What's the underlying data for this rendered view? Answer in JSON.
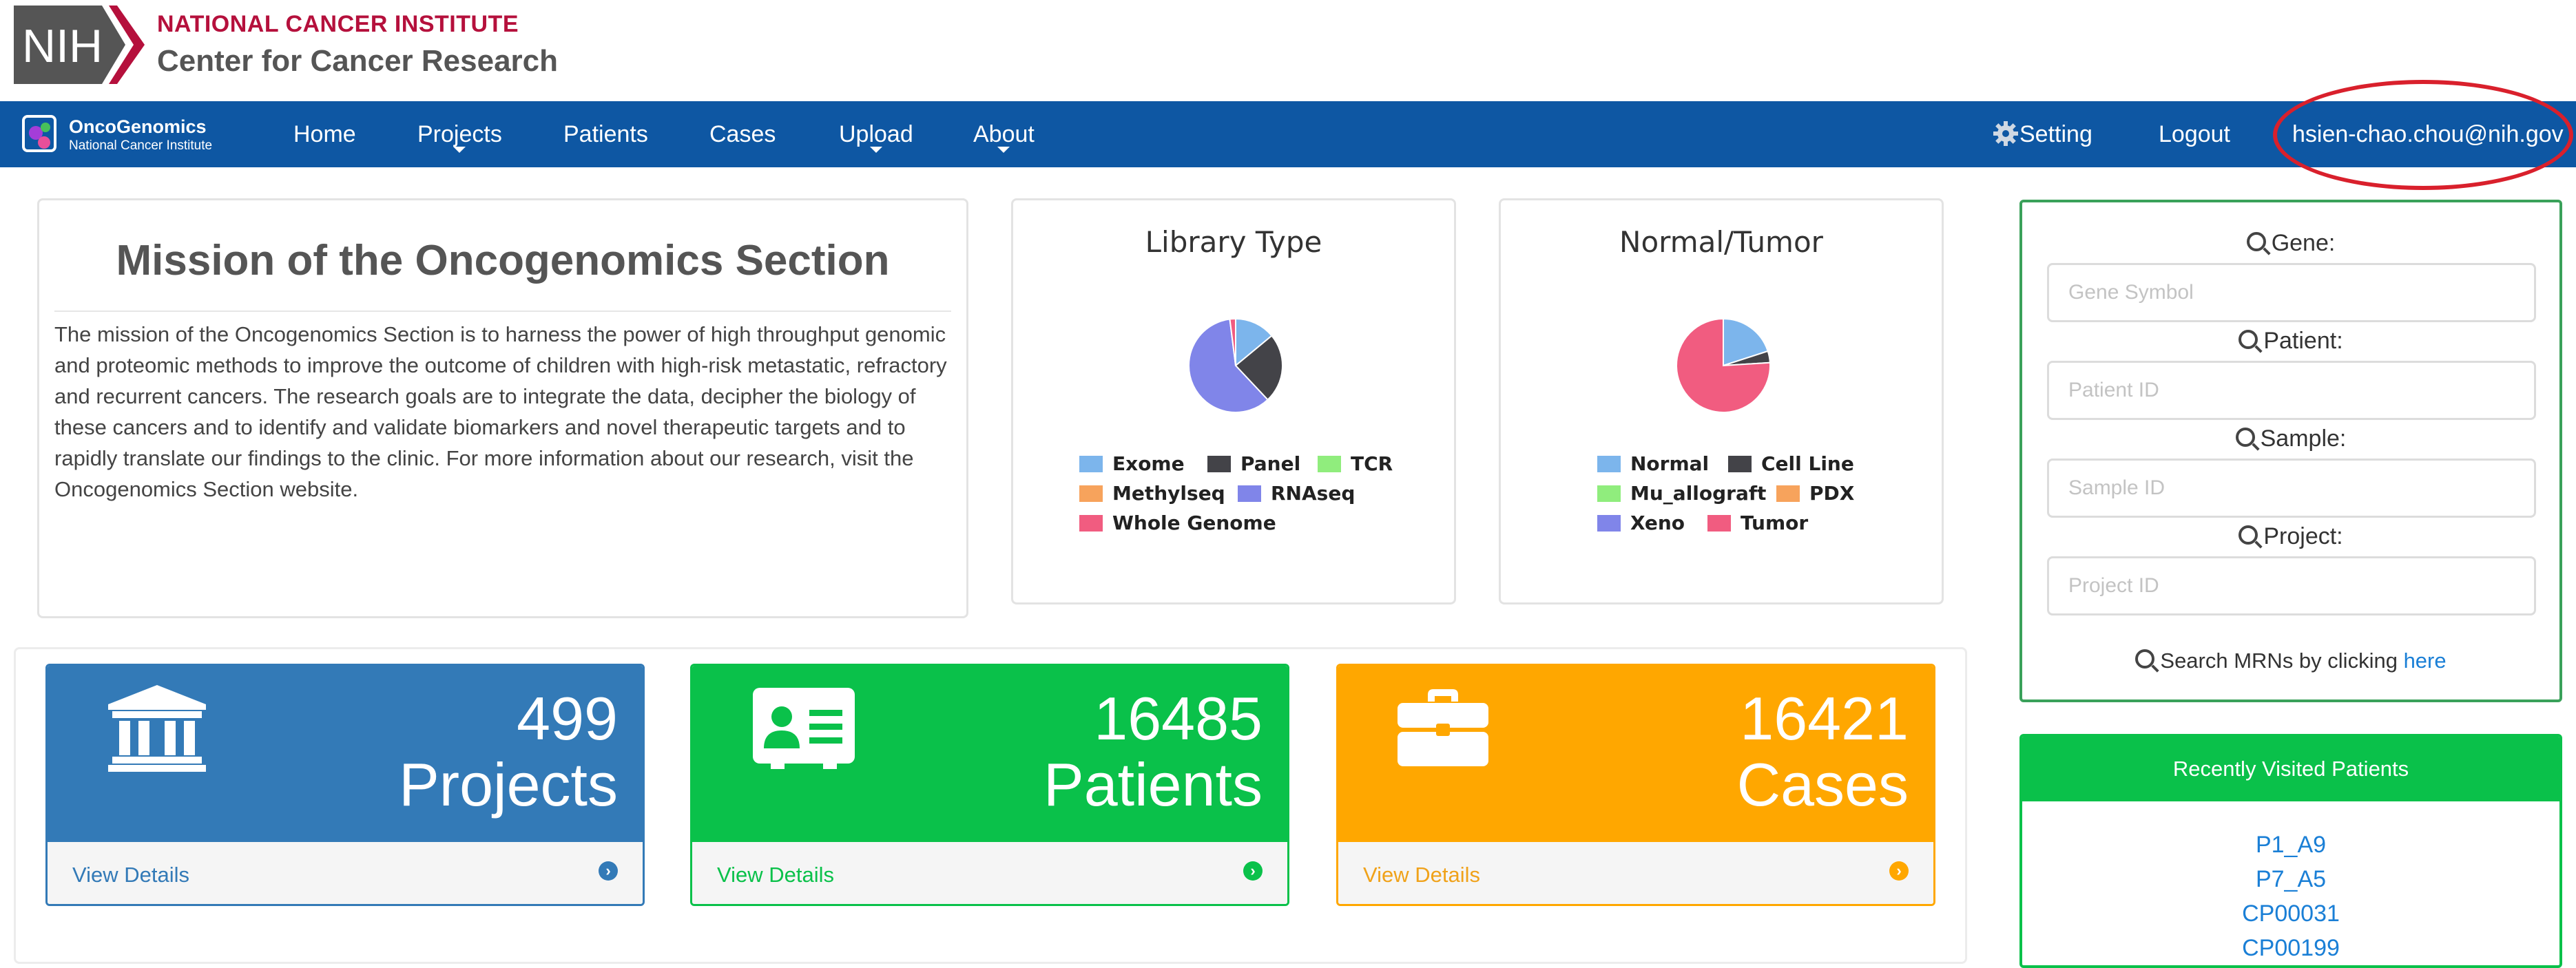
{
  "header": {
    "nih_logo_text": "NIH",
    "institute": "NATIONAL CANCER INSTITUTE",
    "center": "Center for Cancer Research"
  },
  "navbar": {
    "brand_name": "OncoGenomics",
    "brand_sub": "National Cancer Institute",
    "items": [
      {
        "label": "Home"
      },
      {
        "label": "Projects"
      },
      {
        "label": "Patients"
      },
      {
        "label": "Cases"
      },
      {
        "label": "Upload"
      },
      {
        "label": "About"
      }
    ],
    "setting": "Setting",
    "logout": "Logout",
    "user": "hsien-chao.chou@nih.gov"
  },
  "mission": {
    "title": "Mission of the Oncogenomics Section",
    "text": "The mission of the Oncogenomics Section is to harness the power of high throughput genomic and proteomic methods to improve the outcome of children with high-risk metastatic, refractory and recurrent cancers. The research goals are to integrate the data, decipher the biology of these cancers and to identify and validate biomarkers and novel therapeutic targets and to rapidly translate our findings to the clinic. For more information about our research, visit the Oncogenomics Section website."
  },
  "chart_data": [
    {
      "type": "pie",
      "title": "Library Type",
      "legend": [
        "Exome",
        "Panel",
        "TCR",
        "Methylseq",
        "RNAseq",
        "Whole Genome"
      ],
      "colors": [
        "#7cb5ec",
        "#434348",
        "#90ed7d",
        "#f7a35c",
        "#8085e9",
        "#f15c80"
      ],
      "values": [
        0.14,
        0.24,
        0.0,
        0.0,
        0.6,
        0.02
      ]
    },
    {
      "type": "pie",
      "title": "Normal/Tumor",
      "legend": [
        "Normal",
        "Cell Line",
        "Mu_allograft",
        "PDX",
        "Xeno",
        "Tumor"
      ],
      "colors": [
        "#7cb5ec",
        "#434348",
        "#90ed7d",
        "#f7a35c",
        "#8085e9",
        "#f15c80"
      ],
      "values": [
        0.2,
        0.04,
        0.0,
        0.0,
        0.0,
        0.76
      ]
    }
  ],
  "search": {
    "gene_label": "Gene:",
    "gene_placeholder": "Gene Symbol",
    "patient_label": "Patient:",
    "patient_placeholder": "Patient ID",
    "sample_label": "Sample:",
    "sample_placeholder": "Sample ID",
    "project_label": "Project:",
    "project_placeholder": "Project ID",
    "mrn_text": "Search MRNs by clicking",
    "mrn_link": "here"
  },
  "stats": [
    {
      "count": "499",
      "label": "Projects",
      "link": "View Details",
      "color": "#337ab7",
      "icon": "bank-icon"
    },
    {
      "count": "16485",
      "label": "Patients",
      "link": "View Details",
      "color": "#0ac14a",
      "icon": "id-card-icon"
    },
    {
      "count": "16421",
      "label": "Cases",
      "link": "View Details",
      "color": "#ffa700",
      "icon": "briefcase-icon"
    }
  ],
  "recent": {
    "title": "Recently Visited Patients",
    "patients": [
      "P1_A9",
      "P7_A5",
      "CP00031",
      "CP00199"
    ]
  }
}
